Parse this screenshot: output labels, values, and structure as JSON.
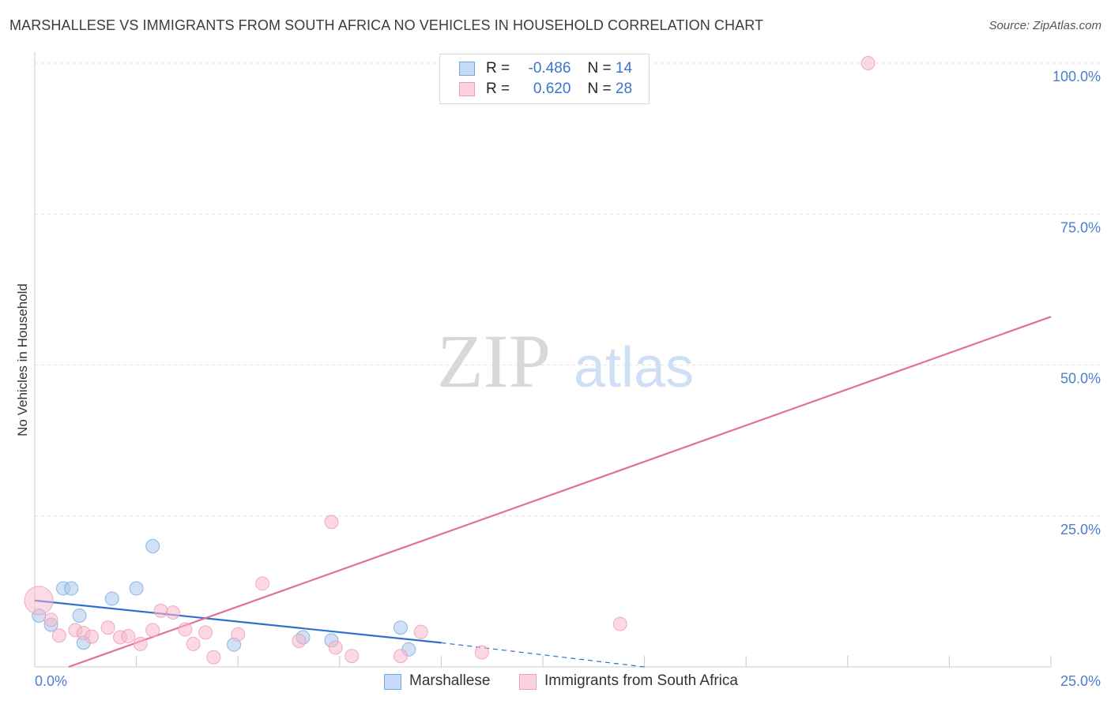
{
  "chart_data": {
    "type": "scatter",
    "title": "MARSHALLESE VS IMMIGRANTS FROM SOUTH AFRICA NO VEHICLES IN HOUSEHOLD CORRELATION CHART",
    "source": "Source: ZipAtlas.com",
    "ylabel": "No Vehicles in Household",
    "xlabel": "",
    "xlim": [
      0,
      25
    ],
    "ylim": [
      0,
      100
    ],
    "x_tick_labels": [
      "0.0%",
      "25.0%"
    ],
    "y_tick_labels": [
      "100.0%",
      "75.0%",
      "50.0%",
      "25.0%"
    ],
    "y_tick_values": [
      100,
      75,
      50,
      25
    ],
    "watermark": {
      "zip": "ZIP",
      "atlas": "atlas"
    },
    "legend_stats": [
      {
        "r_label": "R =",
        "r_value": "-0.486",
        "n_label": "N =",
        "n_value": "14"
      },
      {
        "r_label": "R =",
        "r_value": "0.620",
        "n_label": "N =",
        "n_value": "28"
      }
    ],
    "series": [
      {
        "name": "Marshallese",
        "color": "#a9c8ef",
        "line_color": "#2f6fd0",
        "points": [
          [
            0.1,
            8.5
          ],
          [
            0.4,
            7.0
          ],
          [
            0.7,
            13.0
          ],
          [
            0.9,
            13.0
          ],
          [
            1.1,
            8.5
          ],
          [
            1.2,
            4.0
          ],
          [
            1.9,
            11.3
          ],
          [
            2.5,
            13.0
          ],
          [
            2.9,
            20.0
          ],
          [
            4.9,
            3.7
          ],
          [
            6.6,
            4.9
          ],
          [
            7.3,
            4.4
          ],
          [
            9.0,
            6.5
          ],
          [
            9.2,
            2.9
          ]
        ],
        "trend": {
          "x0": 0.0,
          "y0": 11.0,
          "x1": 10.0,
          "y1": 4.0,
          "dash_x1": 15.0,
          "dash_y1": 0.0
        }
      },
      {
        "name": "Immigrants from South Africa",
        "color": "#f7b8cb",
        "line_color": "#e0709a",
        "points": [
          [
            0.1,
            11.0
          ],
          [
            0.4,
            7.8
          ],
          [
            0.6,
            5.2
          ],
          [
            1.0,
            6.1
          ],
          [
            1.2,
            5.6
          ],
          [
            1.4,
            5.0
          ],
          [
            1.8,
            6.5
          ],
          [
            2.1,
            4.9
          ],
          [
            2.3,
            5.1
          ],
          [
            2.6,
            3.8
          ],
          [
            2.9,
            6.1
          ],
          [
            3.1,
            9.3
          ],
          [
            3.4,
            9.0
          ],
          [
            3.7,
            6.2
          ],
          [
            3.9,
            3.8
          ],
          [
            4.2,
            5.7
          ],
          [
            4.4,
            1.6
          ],
          [
            5.0,
            5.4
          ],
          [
            5.6,
            13.8
          ],
          [
            6.5,
            4.3
          ],
          [
            7.4,
            3.2
          ],
          [
            7.3,
            24.0
          ],
          [
            7.8,
            1.8
          ],
          [
            9.0,
            1.8
          ],
          [
            9.5,
            5.8
          ],
          [
            11.0,
            2.4
          ],
          [
            14.4,
            7.1
          ],
          [
            20.5,
            100.0
          ]
        ],
        "trend": {
          "x0": 0.0,
          "y0": -2.0,
          "x1": 25.0,
          "y1": 58.0
        }
      }
    ]
  }
}
